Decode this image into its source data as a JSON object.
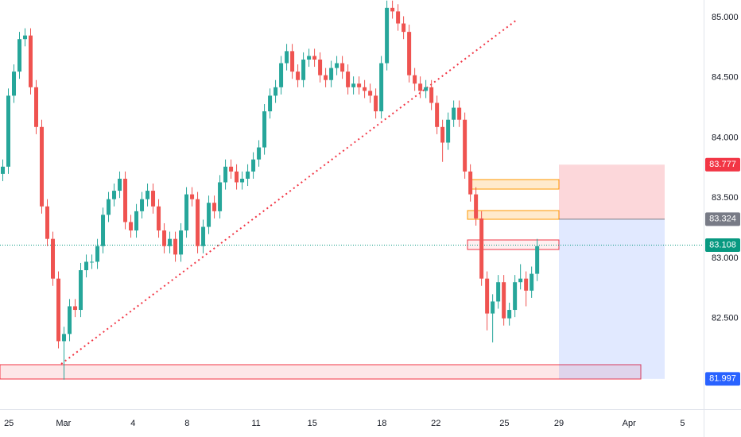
{
  "chart_data": {
    "type": "candlestick",
    "up_color": "#26a69a",
    "down_color": "#ef5350",
    "grid": false,
    "xlim": [
      0,
      126.4
    ],
    "xticks": [
      {
        "value": 1.6,
        "label": "25"
      },
      {
        "value": 11.4,
        "label": "Mar"
      },
      {
        "value": 23.9,
        "label": "4"
      },
      {
        "value": 33.6,
        "label": "8"
      },
      {
        "value": 46,
        "label": "11"
      },
      {
        "value": 56.1,
        "label": "15"
      },
      {
        "value": 68.6,
        "label": "18"
      },
      {
        "value": 78.3,
        "label": "22"
      },
      {
        "value": 90.6,
        "label": "25"
      },
      {
        "value": 100.4,
        "label": "29"
      },
      {
        "value": 113,
        "label": "Apr"
      },
      {
        "value": 122.6,
        "label": "5"
      }
    ],
    "ylim": [
      81.745,
      85.145
    ],
    "yticks": [
      {
        "value": 82.5,
        "label": "82.500"
      },
      {
        "value": 83,
        "label": "83.000"
      },
      {
        "value": 83.5,
        "label": "83.500"
      },
      {
        "value": 84,
        "label": "84.000"
      },
      {
        "value": 84.5,
        "label": "84.500"
      },
      {
        "value": 85,
        "label": "85.000"
      }
    ],
    "price_labels": [
      {
        "value": 83.777,
        "label": "83.777",
        "color": "#f23645"
      },
      {
        "value": 83.324,
        "label": "83.324",
        "color": "#787b86"
      },
      {
        "value": 83.108,
        "label": "83.108",
        "color": "#089981"
      },
      {
        "value": 81.997,
        "label": "81.997",
        "color": "#2962ff"
      }
    ],
    "x": [
      0.5,
      1.5,
      2.5,
      3.5,
      4.5,
      5.5,
      6.5,
      7.5,
      8.5,
      9.5,
      10.5,
      11.5,
      12.5,
      13.5,
      14.5,
      15.5,
      16.5,
      17.5,
      18.5,
      19.5,
      20.5,
      21.5,
      22.5,
      23.5,
      24.5,
      25.5,
      26.5,
      27.5,
      28.5,
      29.5,
      30.5,
      31.5,
      32.5,
      33.5,
      34.5,
      35.5,
      36.5,
      37.5,
      38.5,
      39.5,
      40.5,
      41.5,
      42.5,
      43.5,
      44.5,
      45.5,
      46.5,
      47.5,
      48.5,
      49.5,
      50.5,
      51.5,
      52.5,
      53.5,
      54.5,
      55.5,
      56.5,
      57.5,
      58.5,
      59.5,
      60.5,
      61.5,
      62.5,
      63.5,
      64.5,
      65.5,
      66.5,
      67.5,
      68.5,
      69.5,
      70.5,
      71.5,
      72.5,
      73.5,
      74.5,
      75.5,
      76.5,
      77.5,
      78.5,
      79.5,
      80.5,
      81.5,
      82.5,
      83.5,
      84.5,
      85.5,
      86.5,
      87.5,
      88.5,
      89.5,
      90.5,
      91.5,
      92.5,
      93.5,
      94.5,
      95.5,
      96.5
    ],
    "open": [
      83.7,
      83.76,
      84.35,
      84.55,
      84.82,
      84.85,
      84.42,
      84.09,
      83.43,
      83.16,
      82.83,
      82.31,
      82.37,
      82.6,
      82.57,
      82.9,
      82.97,
      82.97,
      83.1,
      83.36,
      83.49,
      83.56,
      83.66,
      83.3,
      83.23,
      83.39,
      83.49,
      83.56,
      83.43,
      83.23,
      83.1,
      83.16,
      83.03,
      83.23,
      83.53,
      83.49,
      83.1,
      83.26,
      83.46,
      83.39,
      83.63,
      83.76,
      83.72,
      83.63,
      83.66,
      83.72,
      83.82,
      83.92,
      84.22,
      84.35,
      84.42,
      84.62,
      84.72,
      84.55,
      84.48,
      84.65,
      84.68,
      84.65,
      84.52,
      84.48,
      84.58,
      84.62,
      84.55,
      84.42,
      84.45,
      84.42,
      84.39,
      84.35,
      84.22,
      84.62,
      85.08,
      85.05,
      84.95,
      84.88,
      84.52,
      84.45,
      84.39,
      84.42,
      84.29,
      84.09,
      83.96,
      84.15,
      84.25,
      84.15,
      83.72,
      83.53,
      83.33,
      82.83,
      82.54,
      82.64,
      82.8,
      82.5,
      82.57,
      82.8,
      82.83,
      82.73,
      82.87
    ],
    "high": [
      83.82,
      84.41,
      84.61,
      84.88,
      84.91,
      84.91,
      84.48,
      84.15,
      83.49,
      83.22,
      82.89,
      82.43,
      82.66,
      82.66,
      82.96,
      83.03,
      83.03,
      83.16,
      83.42,
      83.55,
      83.62,
      83.72,
      83.72,
      83.36,
      83.45,
      83.55,
      83.62,
      83.62,
      83.49,
      83.29,
      83.22,
      83.22,
      83.29,
      83.59,
      83.59,
      83.55,
      83.32,
      83.52,
      83.52,
      83.69,
      83.82,
      83.82,
      83.78,
      83.72,
      83.78,
      83.88,
      83.98,
      84.28,
      84.41,
      84.48,
      84.68,
      84.78,
      84.78,
      84.61,
      84.71,
      84.74,
      84.74,
      84.71,
      84.58,
      84.64,
      84.68,
      84.68,
      84.61,
      84.51,
      84.51,
      84.48,
      84.45,
      84.41,
      84.68,
      85.14,
      85.14,
      85.11,
      85.01,
      84.94,
      84.58,
      84.51,
      84.48,
      84.48,
      84.35,
      84.15,
      84.21,
      84.31,
      84.31,
      84.21,
      83.78,
      83.59,
      83.39,
      82.89,
      82.7,
      82.86,
      82.86,
      82.63,
      82.86,
      82.95,
      82.89,
      82.93,
      83.16
    ],
    "low": [
      83.64,
      83.7,
      84.29,
      84.49,
      84.76,
      84.36,
      84.03,
      83.37,
      83.1,
      82.77,
      82.25,
      81.99,
      82.31,
      82.51,
      82.51,
      82.84,
      82.91,
      82.91,
      83.04,
      83.3,
      83.43,
      83.5,
      83.24,
      83.17,
      83.17,
      83.33,
      83.43,
      83.37,
      83.17,
      83.04,
      83.04,
      82.97,
      82.97,
      83.17,
      83.43,
      83.04,
      83.04,
      83.2,
      83.33,
      83.33,
      83.57,
      83.66,
      83.57,
      83.57,
      83.6,
      83.66,
      83.76,
      83.86,
      84.16,
      84.29,
      84.36,
      84.56,
      84.49,
      84.42,
      84.42,
      84.59,
      84.59,
      84.46,
      84.42,
      84.42,
      84.52,
      84.49,
      84.36,
      84.36,
      84.36,
      84.33,
      84.29,
      84.16,
      84.16,
      84.56,
      84.99,
      84.89,
      84.82,
      84.46,
      84.39,
      84.33,
      84.33,
      84.23,
      84.03,
      83.8,
      83.9,
      84.09,
      84.09,
      83.66,
      83.47,
      83.27,
      82.77,
      82.4,
      82.3,
      82.58,
      82.44,
      82.44,
      82.51,
      82.74,
      82.6,
      82.67,
      82.81
    ],
    "close": [
      83.76,
      84.35,
      84.55,
      84.82,
      84.85,
      84.42,
      84.09,
      83.43,
      83.16,
      82.83,
      82.31,
      82.37,
      82.6,
      82.57,
      82.9,
      82.97,
      82.97,
      83.1,
      83.36,
      83.49,
      83.56,
      83.66,
      83.3,
      83.23,
      83.39,
      83.49,
      83.56,
      83.43,
      83.23,
      83.1,
      83.16,
      83.03,
      83.23,
      83.53,
      83.49,
      83.1,
      83.26,
      83.46,
      83.39,
      83.63,
      83.76,
      83.72,
      83.63,
      83.66,
      83.72,
      83.82,
      83.92,
      84.22,
      84.35,
      84.42,
      84.62,
      84.72,
      84.55,
      84.48,
      84.65,
      84.68,
      84.65,
      84.52,
      84.48,
      84.58,
      84.62,
      84.55,
      84.42,
      84.45,
      84.42,
      84.39,
      84.35,
      84.22,
      84.62,
      85.08,
      85.05,
      84.95,
      84.88,
      84.52,
      84.45,
      84.39,
      84.42,
      84.29,
      84.09,
      83.96,
      84.15,
      84.25,
      84.15,
      83.72,
      83.53,
      83.33,
      82.83,
      82.54,
      82.64,
      82.8,
      82.5,
      82.57,
      82.8,
      82.83,
      82.73,
      82.87,
      83.1
    ]
  }
}
